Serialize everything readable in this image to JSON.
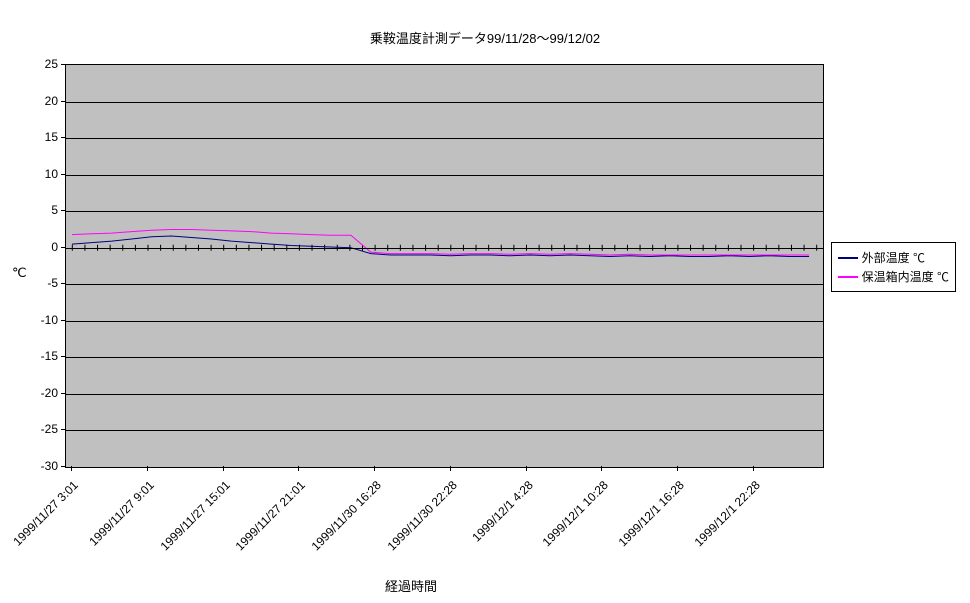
{
  "chart": {
    "type": "line",
    "title": "乗鞍温度計測データ99/11/28～99/12/02",
    "ylabel": "℃",
    "xlabel": "経過時間",
    "background_color": "#ffffff",
    "plot_bgcolor": "#c0c0c0",
    "grid_color": "#000000",
    "border_color": "#000000",
    "title_fontsize": 13,
    "label_fontsize": 13,
    "tick_fontsize": 12,
    "ylim": [
      -30,
      25
    ],
    "yticks": [
      25,
      20,
      15,
      10,
      5,
      0,
      -5,
      -10,
      -15,
      -20,
      -25,
      -30
    ],
    "xtick_labels": [
      "1999/11/27 3:01",
      "1999/11/27 9:01",
      "1999/11/27 15:01",
      "1999/11/27 21:01",
      "1999/11/30 16:28",
      "1999/11/30 22:28",
      "1999/12/1 4:28",
      "1999/12/1 10:28",
      "1999/12/1 16:28",
      "1999/12/1 22:28"
    ],
    "minor_ticks_per_major": 6,
    "series": [
      {
        "name": "外部温度 ℃",
        "color": "#000080",
        "line_width": 1,
        "y": [
          0.5,
          0.7,
          0.9,
          1.2,
          1.5,
          1.6,
          1.4,
          1.2,
          0.9,
          0.7,
          0.5,
          0.3,
          0.2,
          0.1,
          0.0,
          -0.8,
          -1.0,
          -1.0,
          -1.0,
          -1.1,
          -1.0,
          -1.0,
          -1.1,
          -1.0,
          -1.1,
          -1.0,
          -1.1,
          -1.2,
          -1.1,
          -1.2,
          -1.1,
          -1.2,
          -1.2,
          -1.1,
          -1.2,
          -1.1,
          -1.2,
          -1.2
        ]
      },
      {
        "name": "保温箱内温度 ℃",
        "color": "#ff00ff",
        "line_width": 1,
        "y": [
          1.8,
          1.9,
          2.0,
          2.2,
          2.4,
          2.5,
          2.5,
          2.4,
          2.3,
          2.2,
          2.0,
          1.9,
          1.8,
          1.7,
          1.7,
          -0.6,
          -0.8,
          -0.8,
          -0.8,
          -0.9,
          -0.8,
          -0.8,
          -0.9,
          -0.8,
          -0.9,
          -0.8,
          -0.9,
          -1.0,
          -0.9,
          -1.0,
          -1.0,
          -1.0,
          -1.0,
          -1.0,
          -1.0,
          -1.0,
          -1.0,
          -1.0
        ]
      }
    ],
    "legend": {
      "items": [
        "外部温度 ℃",
        "保温箱内温度 ℃"
      ],
      "colors": [
        "#000080",
        "#ff00ff"
      ]
    }
  }
}
